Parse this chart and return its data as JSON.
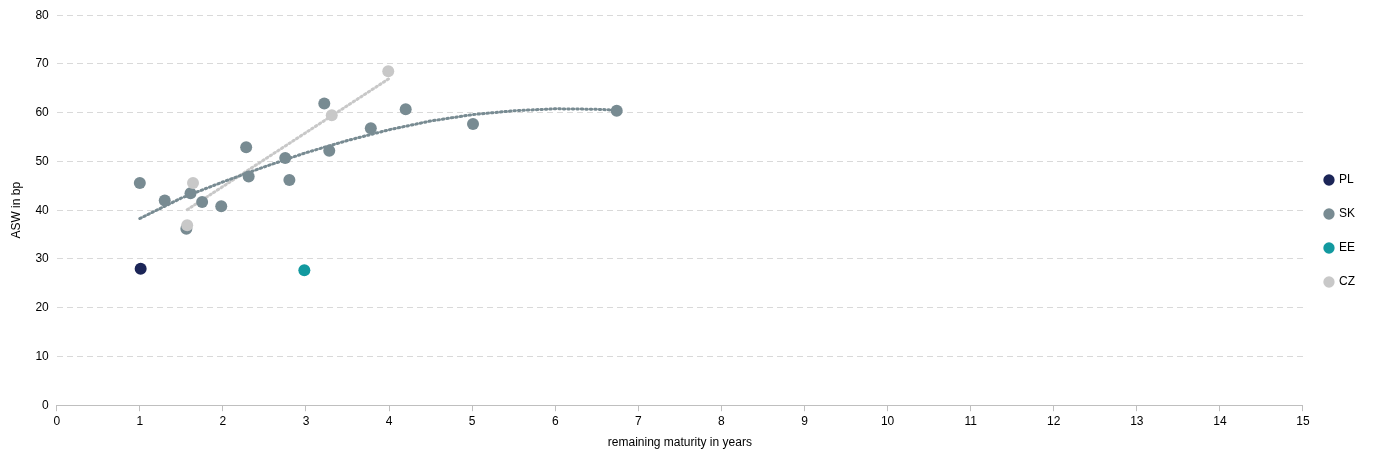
{
  "chart_data": {
    "type": "scatter",
    "xlabel": "remaining maturity in years",
    "ylabel": "ASW in bp",
    "xlim": [
      0,
      15
    ],
    "xticks": [
      0,
      1,
      2,
      3,
      4,
      5,
      6,
      7,
      8,
      9,
      10,
      11,
      12,
      13,
      14,
      15
    ],
    "ylim": [
      0,
      80
    ],
    "yticks": [
      0,
      10,
      20,
      30,
      40,
      50,
      60,
      70,
      80
    ],
    "grid": "y",
    "legend": "right",
    "marker": "circle",
    "series": [
      {
        "name": "PL",
        "color": "#1b2557",
        "x": [
          1.01
        ],
        "values": [
          28.0
        ]
      },
      {
        "name": "SK",
        "color": "#788b92",
        "x": [
          1.0,
          1.3,
          1.61,
          1.56,
          1.75,
          1.98,
          2.28,
          2.31,
          2.75,
          2.8,
          3.22,
          3.28,
          3.78,
          4.2,
          5.01,
          6.74
        ],
        "values": [
          45.6,
          42.0,
          43.5,
          36.2,
          41.7,
          40.8,
          52.9,
          46.9,
          50.7,
          46.2,
          61.9,
          52.2,
          56.8,
          60.7,
          57.7,
          60.4
        ]
      },
      {
        "name": "EE",
        "color": "#12999f",
        "x": [
          2.98
        ],
        "values": [
          27.7
        ]
      },
      {
        "name": "CZ",
        "color": "#c8c8c8",
        "x": [
          1.64,
          1.57,
          3.31,
          3.99
        ],
        "values": [
          45.6,
          36.9,
          59.5,
          68.5
        ]
      },
      {
        "type": "line",
        "color": "#788b92",
        "line_style": "dotted",
        "marker": "none",
        "x": [
          1,
          1.5,
          2,
          2.5,
          3,
          3.5,
          4,
          4.5,
          5,
          5.5,
          6,
          6.5,
          6.75
        ],
        "values": [
          38.3,
          42.5,
          45.8,
          48.9,
          51.8,
          54.3,
          56.5,
          58.3,
          59.6,
          60.4,
          60.8,
          60.7,
          60.5
        ]
      },
      {
        "type": "line",
        "color": "#c8c8c8",
        "line_style": "dotted",
        "marker": "none",
        "x": [
          1.57,
          4.0
        ],
        "values": [
          40.1,
          67.0
        ]
      }
    ]
  }
}
